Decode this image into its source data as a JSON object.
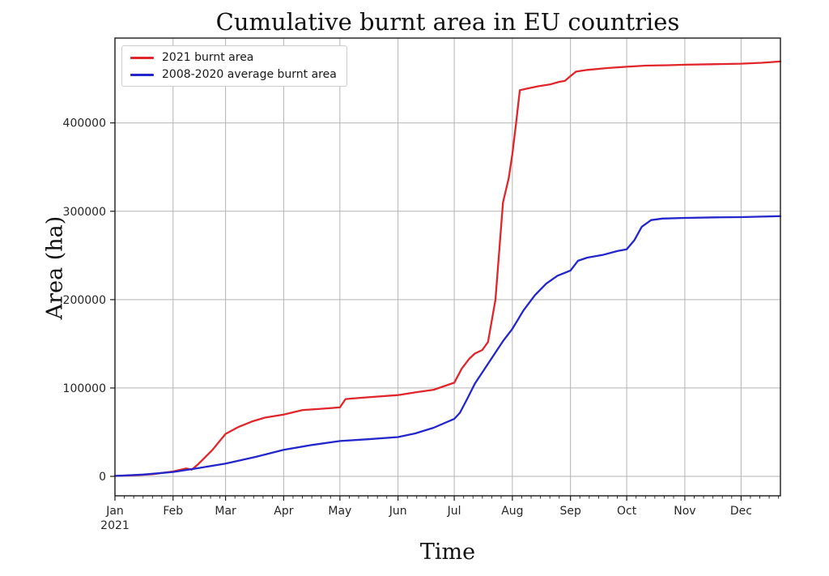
{
  "figure": {
    "background": "#ffffff"
  },
  "chart_data": {
    "type": "line",
    "title": "Cumulative burnt area in EU countries",
    "xlabel": "Time",
    "ylabel": "Area (ha)",
    "grid": true,
    "legend_position": "upper-left",
    "colors": {
      "grid": "#b3b3b3",
      "spine": "#1a1a1a",
      "text": "#262626"
    },
    "x_unit": "day-of-year-2021",
    "xlim": [
      0,
      355
    ],
    "ylim": [
      -22000,
      496000
    ],
    "y_ticks": [
      0,
      100000,
      200000,
      300000,
      400000
    ],
    "x_ticks": [
      {
        "label": "Jan",
        "day": 0,
        "sublabel": "2021"
      },
      {
        "label": "Feb",
        "day": 31
      },
      {
        "label": "Mar",
        "day": 59
      },
      {
        "label": "Apr",
        "day": 90
      },
      {
        "label": "May",
        "day": 120
      },
      {
        "label": "Jun",
        "day": 151
      },
      {
        "label": "Jul",
        "day": 181
      },
      {
        "label": "Aug",
        "day": 212
      },
      {
        "label": "Sep",
        "day": 243
      },
      {
        "label": "Oct",
        "day": 273
      },
      {
        "label": "Nov",
        "day": 304
      },
      {
        "label": "Dec",
        "day": 334
      }
    ],
    "series": [
      {
        "name": "2021 burnt area",
        "color": "#e0252b",
        "x": [
          0,
          10,
          20,
          31,
          38,
          41,
          44,
          52,
          59,
          66,
          73,
          80,
          90,
          100,
          110,
          120,
          123,
          126,
          135,
          151,
          160,
          170,
          181,
          185,
          189,
          192,
          196,
          199,
          203,
          207,
          210,
          212,
          214,
          216,
          220,
          226,
          232,
          237,
          240,
          243,
          246,
          252,
          262,
          273,
          283,
          295,
          304,
          318,
          334,
          345,
          355
        ],
        "y": [
          500,
          1200,
          2500,
          5500,
          9000,
          7500,
          13000,
          30000,
          48000,
          56000,
          62000,
          66500,
          70000,
          75000,
          76500,
          78000,
          87500,
          88000,
          89500,
          92000,
          95000,
          98000,
          106000,
          122000,
          133000,
          139000,
          143000,
          152000,
          200000,
          310000,
          337000,
          365000,
          400000,
          437000,
          439000,
          441500,
          443500,
          446500,
          447500,
          453000,
          458000,
          460000,
          462000,
          463500,
          464800,
          465300,
          465800,
          466400,
          467000,
          468000,
          469500
        ]
      },
      {
        "name": "2008-2020 average burnt area",
        "color": "#2226cb",
        "x": [
          0,
          15,
          31,
          45,
          59,
          75,
          90,
          105,
          120,
          135,
          151,
          160,
          170,
          181,
          184,
          188,
          192,
          197,
          202,
          207,
          212,
          218,
          224,
          230,
          236,
          243,
          247,
          252,
          260,
          268,
          273,
          277,
          281,
          286,
          292,
          304,
          320,
          334,
          345,
          355
        ],
        "y": [
          500,
          2000,
          5000,
          9500,
          14500,
          22000,
          30000,
          35500,
          40000,
          42000,
          44500,
          48500,
          55000,
          65000,
          72000,
          88000,
          105000,
          121000,
          137000,
          153000,
          167000,
          188000,
          205000,
          218000,
          227000,
          233000,
          244000,
          247500,
          250500,
          255000,
          257000,
          267000,
          282500,
          290000,
          291700,
          292500,
          293100,
          293400,
          293900,
          294500
        ]
      }
    ]
  }
}
